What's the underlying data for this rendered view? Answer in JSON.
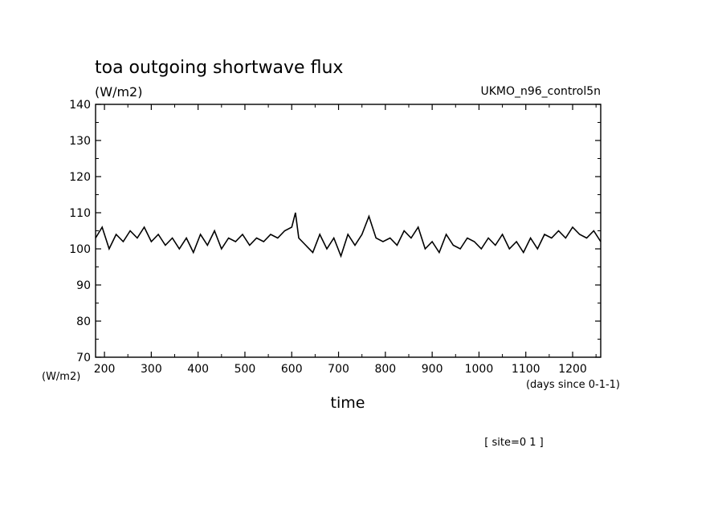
{
  "chart_data": {
    "type": "line",
    "title": "toa outgoing shortwave flux",
    "units_label": "(W/m2)",
    "model_label": "UKMO_n96_control5n",
    "ylabel": "(W/m2)",
    "xlabel": "time",
    "x_units_label": "(days since 0-1-1)",
    "site_label": "[ site=0 1 ]",
    "xlim": [
      181,
      1260
    ],
    "ylim": [
      70,
      140
    ],
    "x_ticks": [
      200,
      300,
      400,
      500,
      600,
      700,
      800,
      900,
      1000,
      1100,
      1200
    ],
    "y_ticks": [
      70,
      80,
      90,
      100,
      110,
      120,
      130,
      140
    ],
    "grid": false,
    "series": [
      {
        "x": [
          181,
          195,
          210,
          225,
          240,
          255,
          270,
          285,
          300,
          315,
          330,
          345,
          360,
          375,
          390,
          405,
          420,
          435,
          450,
          465,
          480,
          495,
          510,
          525,
          540,
          555,
          570,
          585,
          600,
          608,
          615,
          630,
          645,
          660,
          675,
          690,
          705,
          720,
          735,
          750,
          765,
          780,
          795,
          810,
          825,
          840,
          855,
          870,
          885,
          900,
          915,
          930,
          945,
          960,
          975,
          990,
          1005,
          1020,
          1035,
          1050,
          1065,
          1080,
          1095,
          1110,
          1125,
          1140,
          1155,
          1170,
          1185,
          1200,
          1215,
          1230,
          1245,
          1260
        ],
        "y": [
          103,
          106,
          100,
          104,
          102,
          105,
          103,
          106,
          102,
          104,
          101,
          103,
          100,
          103,
          99,
          104,
          101,
          105,
          100,
          103,
          102,
          104,
          101,
          103,
          102,
          104,
          103,
          105,
          106,
          110,
          103,
          101,
          99,
          104,
          100,
          103,
          98,
          104,
          101,
          104,
          109,
          103,
          102,
          103,
          101,
          105,
          103,
          106,
          100,
          102,
          99,
          104,
          101,
          100,
          103,
          102,
          100,
          103,
          101,
          104,
          100,
          102,
          99,
          103,
          100,
          104,
          103,
          105,
          103,
          106,
          104,
          103,
          105,
          102
        ]
      }
    ]
  }
}
